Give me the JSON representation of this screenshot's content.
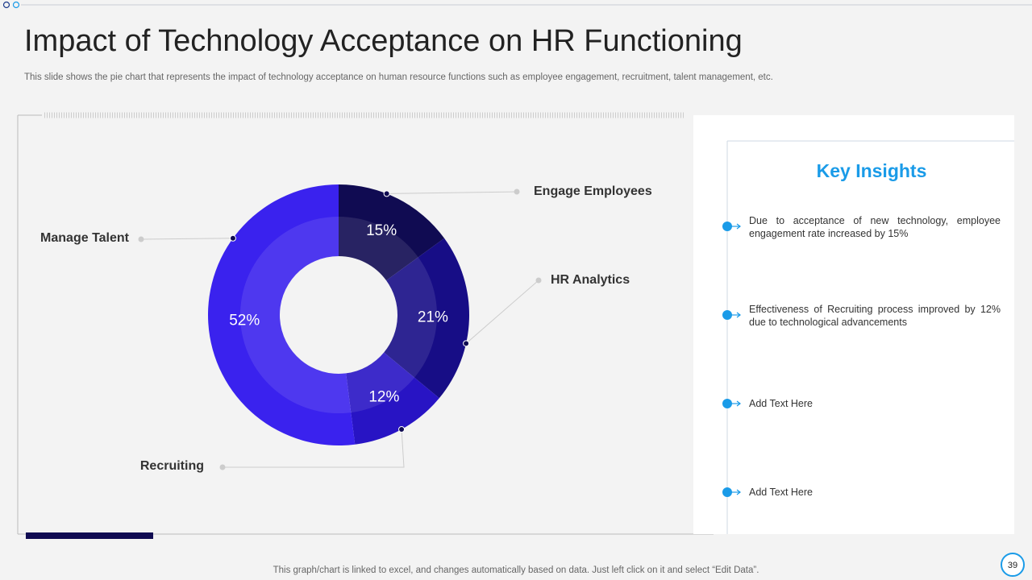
{
  "chart_data": {
    "type": "pie",
    "title": "Impact of Technology Acceptance on HR Functioning",
    "subtitle": "This slide shows the pie chart that represents the impact of technology acceptance on human resource functions such as employee engagement, recruitment, talent management, etc.",
    "categories": [
      "Engage Employees",
      "HR Analytics",
      "Recruiting",
      "Manage Talent"
    ],
    "values": [
      15,
      21,
      12,
      52
    ],
    "value_labels": [
      "15%",
      "21%",
      "12%",
      "52%"
    ],
    "colors": [
      "#100b52",
      "#170d86",
      "#2814c4",
      "#3a22ee"
    ],
    "donut": true
  },
  "insights": {
    "title": "Key Insights",
    "items": [
      "Due to acceptance of new technology, employee engagement rate increased by 15%",
      "Effectiveness of Recruiting process improved by 12% due to technological advancements",
      "Add Text Here",
      "Add Text Here"
    ]
  },
  "footer": "This graph/chart is linked to excel,  and changes automatically based on data. Just left click on it and select “Edit Data”.",
  "page_number": "39"
}
